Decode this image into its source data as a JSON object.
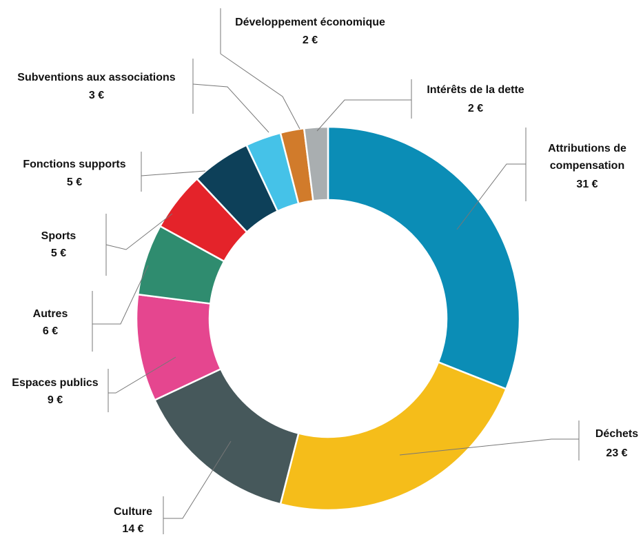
{
  "chart_data": {
    "type": "donut",
    "categories": [
      "Attributions de compensation",
      "Déchets",
      "Culture",
      "Espaces publics",
      "Autres",
      "Sports",
      "Fonctions supports",
      "Subventions aux associations",
      "Développement économique",
      "Intérêts de la dette"
    ],
    "values": [
      31,
      23,
      14,
      9,
      6,
      5,
      5,
      3,
      2,
      2
    ],
    "value_labels": [
      "31 €",
      "23 €",
      "14 €",
      "9 €",
      "6 €",
      "5 €",
      "5 €",
      "3 €",
      "2 €",
      "2 €"
    ],
    "colors": [
      "#0b8db6",
      "#f5bd1a",
      "#46585b",
      "#e5468f",
      "#2f8c6f",
      "#e4232a",
      "#0d4059",
      "#45c2e8",
      "#d17b2b",
      "#a9aeb0"
    ]
  }
}
